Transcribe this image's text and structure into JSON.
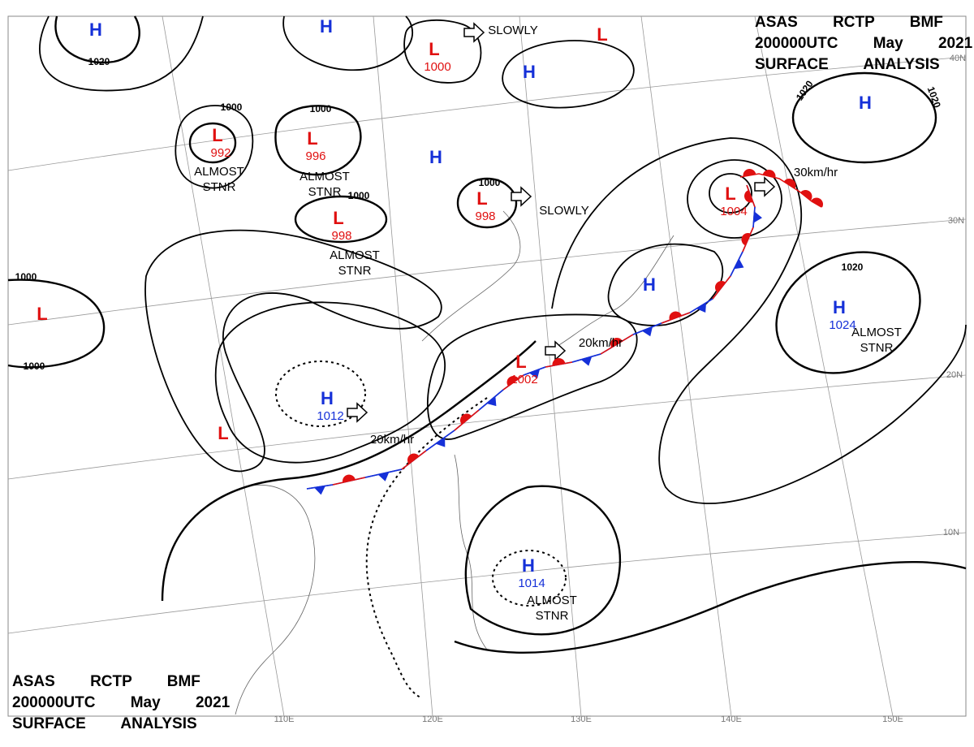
{
  "header_top": {
    "lines": [
      "ASAS RCTP BMF",
      "200000UTC May 2021",
      "SURFACE ANALYSIS"
    ]
  },
  "header_bottom": {
    "lines": [
      "ASAS RCTP BMF",
      "200000UTC May 2021",
      "SURFACE ANALYSIS"
    ]
  },
  "centers": [
    {
      "symbol": "H"
    },
    {
      "symbol": "H"
    },
    {
      "symbol": "L",
      "pressure": "1000"
    },
    {
      "symbol": "L"
    },
    {
      "symbol": "H"
    },
    {
      "symbol": "H"
    },
    {
      "symbol": "L",
      "pressure": "992"
    },
    {
      "symbol": "L",
      "pressure": "996"
    },
    {
      "symbol": "H"
    },
    {
      "symbol": "L",
      "pressure": "998"
    },
    {
      "symbol": "L",
      "pressure": "998"
    },
    {
      "symbol": "L",
      "pressure": "1004"
    },
    {
      "symbol": "L"
    },
    {
      "symbol": "H"
    },
    {
      "symbol": "H",
      "pressure": "1024"
    },
    {
      "symbol": "L",
      "pressure": "1002"
    },
    {
      "symbol": "H",
      "pressure": "1012"
    },
    {
      "symbol": "L"
    },
    {
      "symbol": "H",
      "pressure": "1014"
    }
  ],
  "annotations": [
    {
      "lines": [
        "ALMOST",
        "STNR"
      ]
    },
    {
      "lines": [
        "ALMOST",
        "STNR"
      ]
    },
    {
      "lines": [
        "ALMOST",
        "STNR"
      ]
    },
    {
      "lines": [
        "ALMOST",
        "STNR"
      ]
    },
    {
      "lines": [
        "ALMOST",
        "STNR"
      ]
    },
    {
      "lines": [
        "SLOWLY"
      ]
    },
    {
      "lines": [
        "SLOWLY"
      ]
    },
    {
      "lines": [
        "30km/hr"
      ]
    },
    {
      "lines": [
        "20km/hr"
      ]
    },
    {
      "lines": [
        "20km/hr"
      ]
    }
  ],
  "isobar_labels": [
    "1020",
    "1000",
    "1000",
    "1000",
    "1000",
    "1000",
    "1000",
    "1020",
    "1020",
    "1020"
  ],
  "latitude_labels": [
    "40N",
    "30N",
    "20N",
    "10N"
  ],
  "longitude_labels": [
    "110E",
    "120E",
    "130E",
    "140E",
    "150E"
  ]
}
